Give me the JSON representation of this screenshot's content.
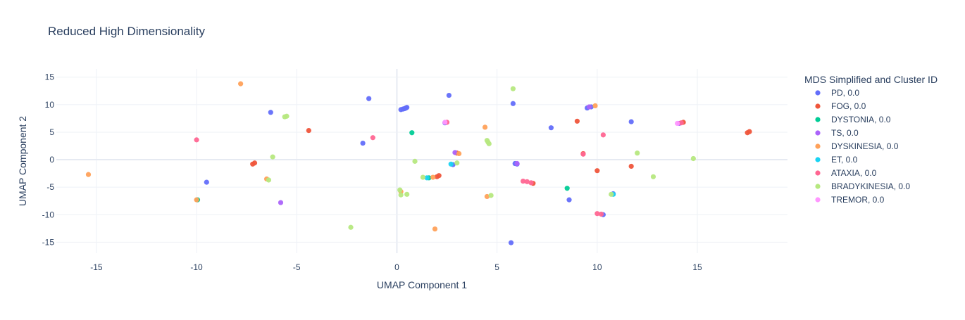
{
  "chart_data": {
    "type": "scatter",
    "title": "Reduced High Dimensionality",
    "xlabel": "UMAP Component 1",
    "ylabel": "UMAP Component 2",
    "xlim": [
      -17,
      19.5
    ],
    "ylim": [
      -17,
      16.5
    ],
    "xticks": [
      -15,
      -10,
      -5,
      0,
      5,
      10,
      15
    ],
    "yticks": [
      -15,
      -10,
      -5,
      0,
      5,
      10,
      15
    ],
    "grid": true,
    "legend": {
      "title": "MDS Simplified and Cluster ID",
      "position": "right"
    },
    "series": [
      {
        "name": "PD, 0.0",
        "color": "#636efa",
        "points": [
          [
            0.2,
            9.1
          ],
          [
            0.3,
            9.2
          ],
          [
            0.35,
            9.25
          ],
          [
            0.4,
            9.3
          ],
          [
            0.45,
            9.4
          ],
          [
            0.5,
            9.5
          ],
          [
            -1.4,
            11.1
          ],
          [
            2.6,
            11.7
          ],
          [
            5.8,
            10.2
          ],
          [
            -6.3,
            8.6
          ],
          [
            9.5,
            9.4
          ],
          [
            9.7,
            9.6
          ],
          [
            7.7,
            5.8
          ],
          [
            11.7,
            6.9
          ],
          [
            -1.7,
            3.0
          ],
          [
            -9.5,
            -4.1
          ],
          [
            8.6,
            -7.3
          ],
          [
            5.7,
            -15.1
          ],
          [
            6.0,
            -0.8
          ],
          [
            5.9,
            -0.7
          ],
          [
            2.8,
            -0.9
          ],
          [
            10.3,
            -10.0
          ],
          [
            2.4,
            6.7
          ],
          [
            10.8,
            -6.2
          ]
        ]
      },
      {
        "name": "FOG, 0.0",
        "color": "#ef553b",
        "points": [
          [
            -4.4,
            5.3
          ],
          [
            9.0,
            7.0
          ],
          [
            14.3,
            6.8
          ],
          [
            17.5,
            4.9
          ],
          [
            17.6,
            5.1
          ],
          [
            -7.2,
            -0.8
          ],
          [
            -7.1,
            -0.6
          ],
          [
            10.0,
            -2.0
          ],
          [
            11.7,
            -1.2
          ],
          [
            2.0,
            -3.1
          ],
          [
            2.1,
            -2.9
          ],
          [
            6.8,
            -4.3
          ],
          [
            9.3,
            1.1
          ],
          [
            3.0,
            1.2
          ]
        ]
      },
      {
        "name": "DYSTONIA, 0.0",
        "color": "#00cc96",
        "points": [
          [
            0.75,
            4.9
          ],
          [
            1.6,
            -3.3
          ],
          [
            8.5,
            -5.2
          ],
          [
            -9.95,
            -7.3
          ]
        ]
      },
      {
        "name": "TS, 0.0",
        "color": "#ab63fa",
        "points": [
          [
            -5.8,
            -7.8
          ],
          [
            6.0,
            -0.7
          ],
          [
            9.6,
            9.6
          ],
          [
            2.9,
            1.3
          ],
          [
            14.1,
            6.6
          ]
        ]
      },
      {
        "name": "DYSKINESIA, 0.0",
        "color": "#ffa15a",
        "points": [
          [
            -15.4,
            -2.7
          ],
          [
            -7.8,
            13.8
          ],
          [
            4.4,
            5.9
          ],
          [
            9.9,
            9.8
          ],
          [
            1.9,
            -12.6
          ],
          [
            -6.5,
            -3.5
          ],
          [
            1.8,
            -3.2
          ],
          [
            4.5,
            -6.7
          ],
          [
            0.2,
            -5.8
          ],
          [
            3.1,
            1.1
          ],
          [
            -10.0,
            -7.3
          ]
        ]
      },
      {
        "name": "ET, 0.0",
        "color": "#19d3f3",
        "points": [
          [
            2.7,
            -0.8
          ],
          [
            10.8,
            -6.3
          ],
          [
            1.5,
            -3.3
          ]
        ]
      },
      {
        "name": "ATAXIA, 0.0",
        "color": "#ff6692",
        "points": [
          [
            -10.0,
            3.6
          ],
          [
            -1.2,
            4.0
          ],
          [
            10.3,
            4.5
          ],
          [
            6.3,
            -3.9
          ],
          [
            6.5,
            -4.0
          ],
          [
            6.7,
            -4.2
          ],
          [
            10.0,
            -9.8
          ],
          [
            10.2,
            -9.9
          ],
          [
            9.3,
            1.0
          ],
          [
            14.2,
            6.7
          ],
          [
            2.5,
            6.8
          ]
        ]
      },
      {
        "name": "BRADYKINESIA, 0.0",
        "color": "#b6e880",
        "points": [
          [
            5.8,
            12.9
          ],
          [
            -5.6,
            7.8
          ],
          [
            -5.5,
            7.9
          ],
          [
            4.5,
            3.5
          ],
          [
            4.55,
            3.2
          ],
          [
            4.6,
            2.9
          ],
          [
            -6.2,
            0.5
          ],
          [
            0.9,
            -0.3
          ],
          [
            3.0,
            -0.6
          ],
          [
            12.0,
            1.2
          ],
          [
            14.8,
            0.2
          ],
          [
            12.8,
            -3.1
          ],
          [
            1.3,
            -3.2
          ],
          [
            -6.4,
            -3.7
          ],
          [
            0.2,
            -6.4
          ],
          [
            0.5,
            -6.3
          ],
          [
            4.7,
            -6.5
          ],
          [
            0.15,
            -5.5
          ],
          [
            10.7,
            -6.3
          ],
          [
            -2.3,
            -12.3
          ]
        ]
      },
      {
        "name": "TREMOR, 0.0",
        "color": "#ff97ff",
        "points": [
          [
            2.4,
            6.8
          ],
          [
            14.0,
            6.6
          ]
        ]
      }
    ]
  }
}
